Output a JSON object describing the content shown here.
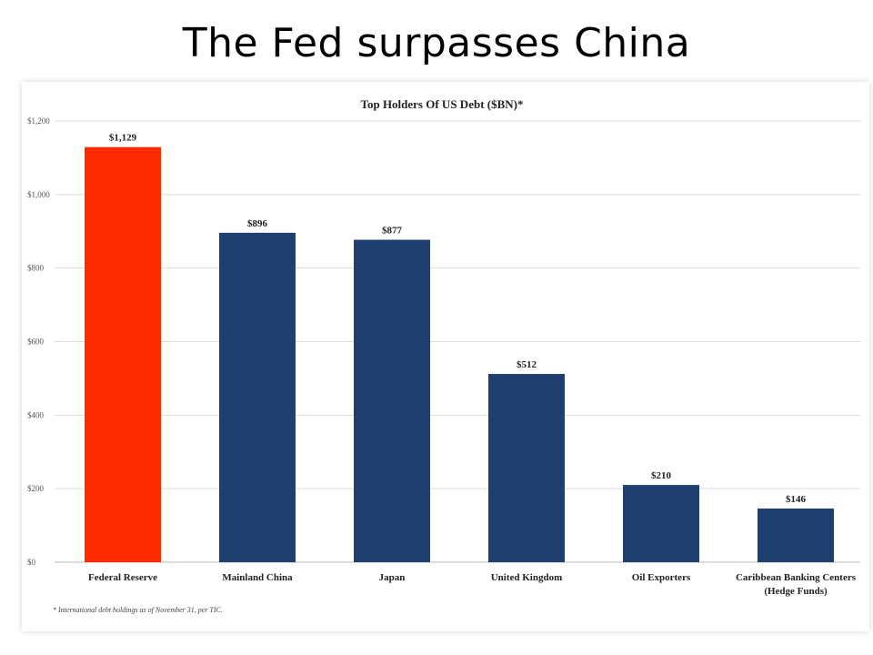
{
  "slide": {
    "title": "The Fed surpasses China"
  },
  "chart_data": {
    "type": "bar",
    "title": "Top Holders Of US Debt ($BN)*",
    "categories": [
      [
        "Federal Reserve"
      ],
      [
        "Mainland China"
      ],
      [
        "Japan"
      ],
      [
        "United Kingdom"
      ],
      [
        "Oil Exporters"
      ],
      [
        "Caribbean Banking Centers",
        "(Hedge Funds)"
      ]
    ],
    "values": [
      1129,
      896,
      877,
      512,
      210,
      146
    ],
    "data_labels": [
      "$1,129",
      "$896",
      "$877",
      "$512",
      "$210",
      "$146"
    ],
    "bar_colors": [
      "#ff2a00",
      "#1f3f6e",
      "#1f3f6e",
      "#1f3f6e",
      "#1f3f6e",
      "#1f3f6e"
    ],
    "yticks": [
      0,
      200,
      400,
      600,
      800,
      1000,
      1200
    ],
    "ytick_labels": [
      "$0",
      "$200",
      "$400",
      "$600",
      "$800",
      "$1,000",
      "$1,200"
    ],
    "ylim": [
      0,
      1200
    ],
    "grid": true,
    "footnote": "* International debt holdings as of November 31, per TIC."
  }
}
